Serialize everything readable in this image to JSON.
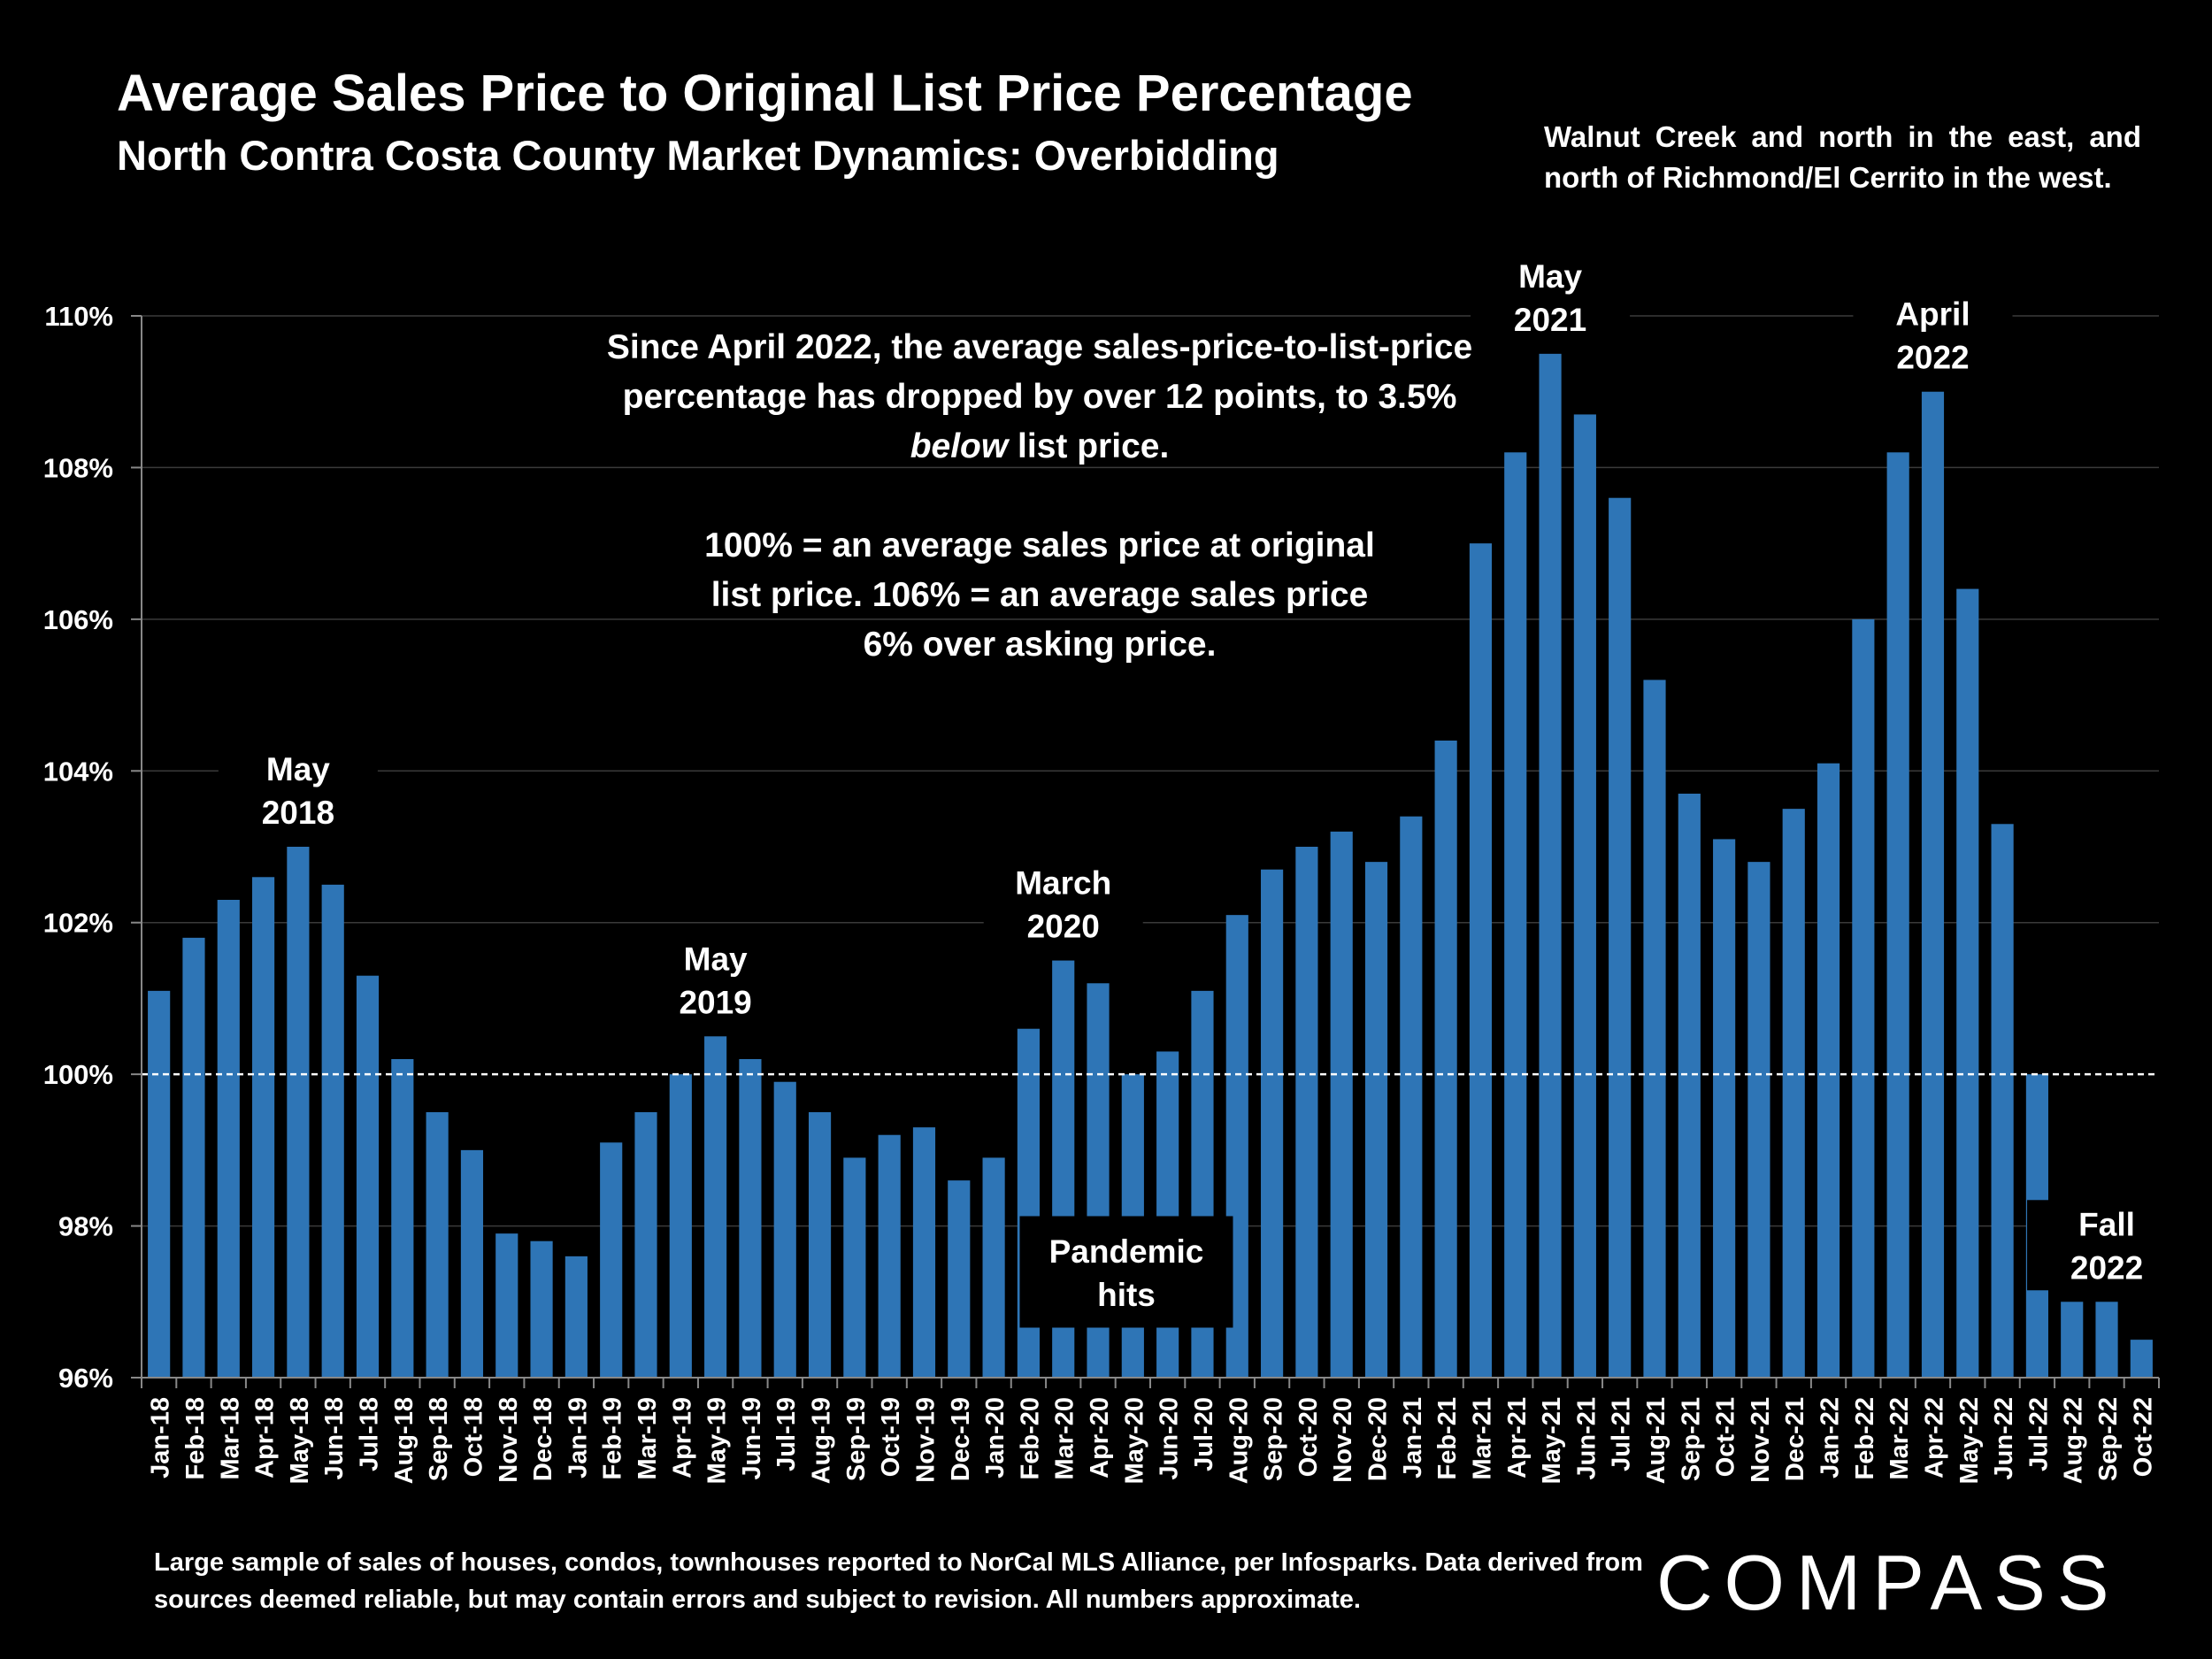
{
  "header": {
    "title": "Average Sales Price to Original List Price Percentage",
    "subtitle": "North Contra Costa County Market Dynamics: Overbidding",
    "region_note": "Walnut Creek and north in the east, and north of Richmond/El Cerrito in the west."
  },
  "annotation": {
    "line1": "Since April 2022, the average sales-price-to-list-price percentage has dropped by over 12 points, to 3.5% ",
    "line1_emph": "below",
    "line1_end": " list price.",
    "line2": "100% = an average sales price at original list price. 106% = an average sales price 6% over asking price."
  },
  "footer": {
    "note": "Large sample of sales of houses, condos, townhouses reported to NorCal MLS Alliance, per Infosparks. Data derived from sources deemed reliable, but may contain errors and subject to revision. All numbers approximate.",
    "logo_text": "COMPASS"
  },
  "chart_data": {
    "type": "bar",
    "categories": [
      "Jan-18",
      "Feb-18",
      "Mar-18",
      "Apr-18",
      "May-18",
      "Jun-18",
      "Jul-18",
      "Aug-18",
      "Sep-18",
      "Oct-18",
      "Nov-18",
      "Dec-18",
      "Jan-19",
      "Feb-19",
      "Mar-19",
      "Apr-19",
      "May-19",
      "Jun-19",
      "Jul-19",
      "Aug-19",
      "Sep-19",
      "Oct-19",
      "Nov-19",
      "Dec-19",
      "Jan-20",
      "Feb-20",
      "Mar-20",
      "Apr-20",
      "May-20",
      "Jun-20",
      "Jul-20",
      "Aug-20",
      "Sep-20",
      "Oct-20",
      "Nov-20",
      "Dec-20",
      "Jan-21",
      "Feb-21",
      "Mar-21",
      "Apr-21",
      "May-21",
      "Jun-21",
      "Jul-21",
      "Aug-21",
      "Sep-21",
      "Oct-21",
      "Nov-21",
      "Dec-21",
      "Jan-22",
      "Feb-22",
      "Mar-22",
      "Apr-22",
      "May-22",
      "Jun-22",
      "Jul-22",
      "Aug-22",
      "Sep-22",
      "Oct-22"
    ],
    "values": [
      101.1,
      101.8,
      102.3,
      102.6,
      103.0,
      102.5,
      101.3,
      100.2,
      99.5,
      99.0,
      97.9,
      97.8,
      97.6,
      99.1,
      99.5,
      100.0,
      100.5,
      100.2,
      99.9,
      99.5,
      98.9,
      99.2,
      99.3,
      98.6,
      98.9,
      100.6,
      101.5,
      101.2,
      100.0,
      100.3,
      101.1,
      102.1,
      102.7,
      103.0,
      103.2,
      102.8,
      103.4,
      104.4,
      107.0,
      108.2,
      109.5,
      108.7,
      107.6,
      105.2,
      103.7,
      103.1,
      102.8,
      103.5,
      104.1,
      106.0,
      108.2,
      109.0,
      106.4,
      103.3,
      100.0,
      97.0,
      97.0,
      96.5
    ],
    "ylim": [
      96,
      110
    ],
    "yticks": [
      "96%",
      "98%",
      "100%",
      "102%",
      "104%",
      "106%",
      "108%",
      "110%"
    ],
    "reference_line": 100,
    "bar_color": "#2E75B6",
    "callouts": [
      {
        "label": "May 2018",
        "lines": [
          "May",
          "2018"
        ],
        "index": 4
      },
      {
        "label": "May 2019",
        "lines": [
          "May",
          "2019"
        ],
        "index": 16
      },
      {
        "label": "March 2020",
        "lines": [
          "March",
          "2020"
        ],
        "index": 26
      },
      {
        "label": "Pandemic hits",
        "lines": [
          "Pandemic",
          "hits"
        ],
        "index": 27,
        "boxed": true
      },
      {
        "label": "May 2021",
        "lines": [
          "May",
          "2021"
        ],
        "index": 40
      },
      {
        "label": "April 2022",
        "lines": [
          "April",
          "2022"
        ],
        "index": 51
      },
      {
        "label": "Fall 2022",
        "lines": [
          "Fall",
          "2022"
        ],
        "index": 56
      }
    ]
  }
}
